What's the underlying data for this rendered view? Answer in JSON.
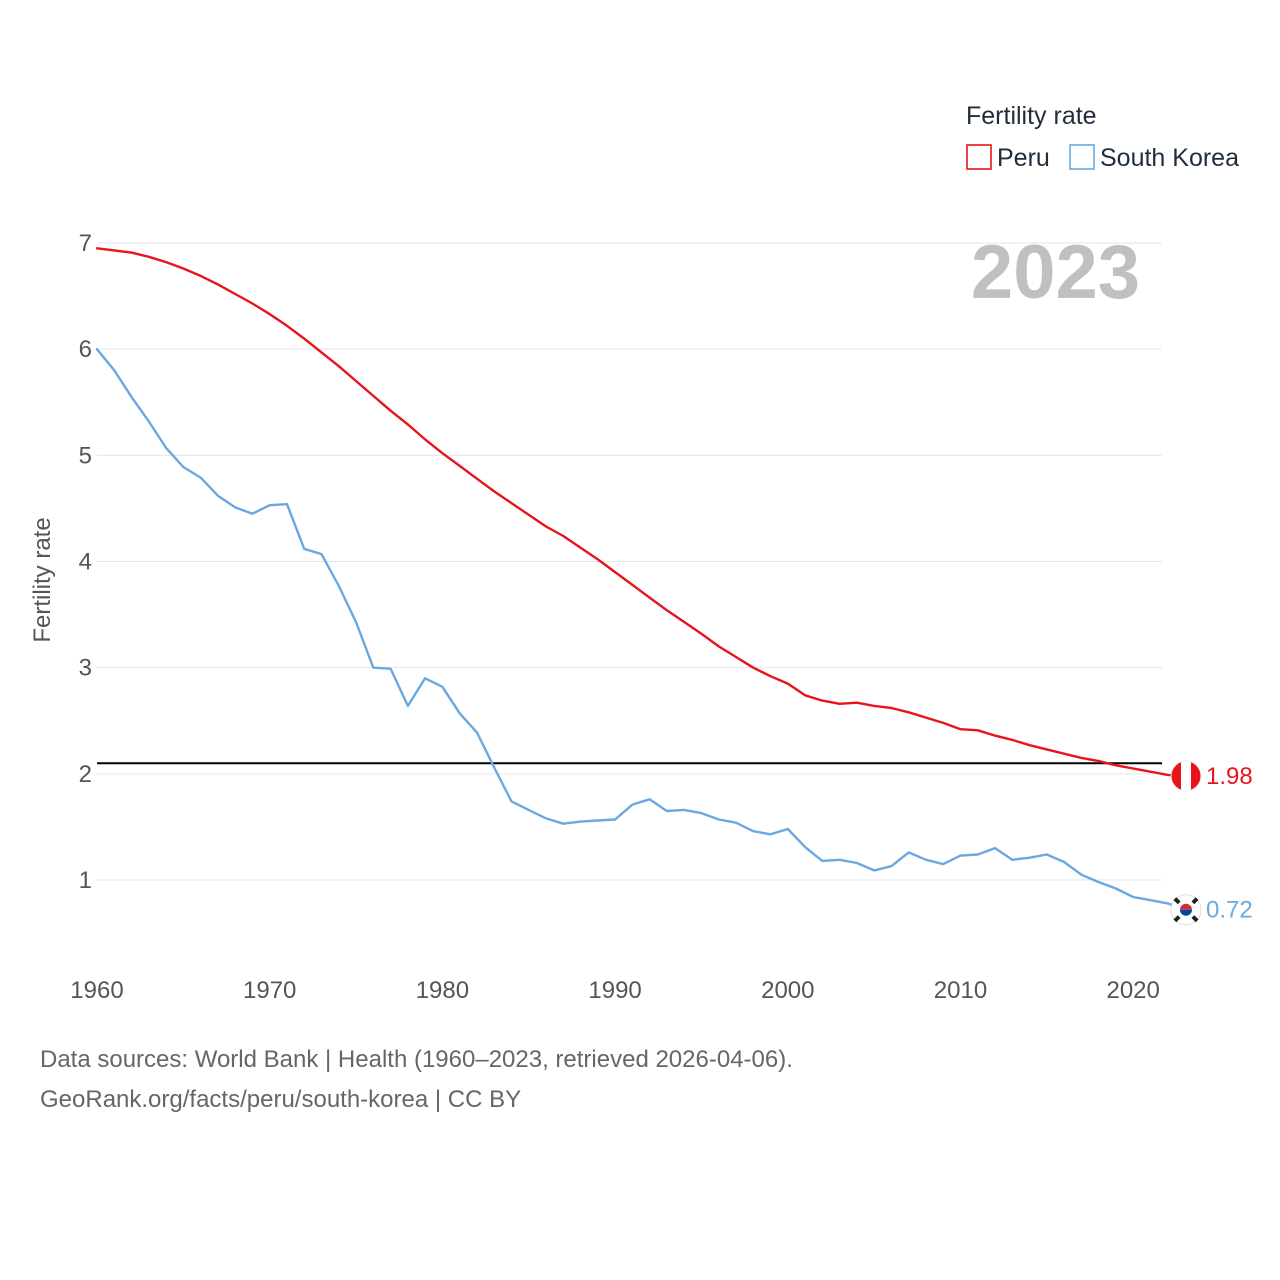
{
  "chart_data": {
    "type": "line",
    "title": "",
    "year_watermark": "2023",
    "xlabel": "",
    "ylabel": "Fertility rate",
    "xlim": [
      1960,
      2023
    ],
    "ylim": [
      0.4,
      7.0
    ],
    "x_ticks": [
      1960,
      1970,
      1980,
      1990,
      2000,
      2010,
      2020
    ],
    "y_ticks": [
      1,
      2,
      3,
      4,
      5,
      6,
      7
    ],
    "reference_line": {
      "y": 2.1
    },
    "legend": {
      "title": "Fertility rate",
      "position": "top-right"
    },
    "x": [
      1960,
      1961,
      1962,
      1963,
      1964,
      1965,
      1966,
      1967,
      1968,
      1969,
      1970,
      1971,
      1972,
      1973,
      1974,
      1975,
      1976,
      1977,
      1978,
      1979,
      1980,
      1981,
      1982,
      1983,
      1984,
      1985,
      1986,
      1987,
      1988,
      1989,
      1990,
      1991,
      1992,
      1993,
      1994,
      1995,
      1996,
      1997,
      1998,
      1999,
      2000,
      2001,
      2002,
      2003,
      2004,
      2005,
      2006,
      2007,
      2008,
      2009,
      2010,
      2011,
      2012,
      2013,
      2014,
      2015,
      2016,
      2017,
      2018,
      2019,
      2020,
      2021,
      2022,
      2023
    ],
    "series": [
      {
        "name": "Peru",
        "color": "#e8141c",
        "end_label": "1.98",
        "values": [
          6.95,
          6.93,
          6.91,
          6.87,
          6.82,
          6.76,
          6.69,
          6.61,
          6.52,
          6.43,
          6.33,
          6.22,
          6.1,
          5.97,
          5.84,
          5.7,
          5.56,
          5.42,
          5.29,
          5.15,
          5.02,
          4.9,
          4.78,
          4.66,
          4.55,
          4.44,
          4.33,
          4.24,
          4.13,
          4.02,
          3.9,
          3.78,
          3.66,
          3.54,
          3.43,
          3.32,
          3.2,
          3.1,
          3.0,
          2.92,
          2.85,
          2.74,
          2.69,
          2.66,
          2.67,
          2.64,
          2.62,
          2.58,
          2.53,
          2.48,
          2.42,
          2.41,
          2.36,
          2.32,
          2.27,
          2.23,
          2.19,
          2.15,
          2.12,
          2.08,
          2.05,
          2.02,
          1.99,
          1.98
        ]
      },
      {
        "name": "South Korea",
        "color": "#6aa8e0",
        "end_label": "0.72",
        "values": [
          6.0,
          5.8,
          5.55,
          5.32,
          5.07,
          4.89,
          4.79,
          4.62,
          4.51,
          4.45,
          4.53,
          4.54,
          4.12,
          4.07,
          3.77,
          3.43,
          3.0,
          2.99,
          2.64,
          2.9,
          2.82,
          2.57,
          2.39,
          2.06,
          1.74,
          1.66,
          1.58,
          1.53,
          1.55,
          1.56,
          1.57,
          1.71,
          1.76,
          1.65,
          1.66,
          1.63,
          1.57,
          1.54,
          1.46,
          1.43,
          1.48,
          1.31,
          1.18,
          1.19,
          1.16,
          1.09,
          1.13,
          1.26,
          1.19,
          1.15,
          1.23,
          1.24,
          1.3,
          1.19,
          1.21,
          1.24,
          1.17,
          1.05,
          0.98,
          0.92,
          0.84,
          0.81,
          0.78,
          0.72
        ]
      }
    ]
  },
  "footer": {
    "line1": "Data sources: World Bank | Health (1960–2023, retrieved 2026-04-06).",
    "line2": "GeoRank.org/facts/peru/south-korea | CC BY"
  }
}
